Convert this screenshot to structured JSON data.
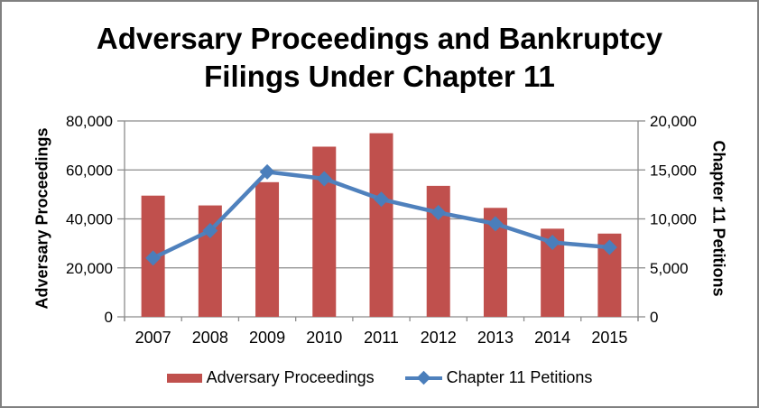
{
  "frame": {
    "border_color": "#808080",
    "background": "#FFFFFF"
  },
  "chart": {
    "title_line1": "Adversary Proceedings and Bankruptcy",
    "title_line2": "Filings Under Chapter 11"
  },
  "chart_data": {
    "type": "combo",
    "categories": [
      "2007",
      "2008",
      "2009",
      "2010",
      "2011",
      "2012",
      "2013",
      "2014",
      "2015"
    ],
    "series": [
      {
        "name": "Adversary Proceedings",
        "type": "bar",
        "axis": "left",
        "color": "#C0504D",
        "values": [
          49500,
          45500,
          55000,
          69500,
          75000,
          53500,
          44500,
          36000,
          34000
        ]
      },
      {
        "name": "Chapter 11 Petitions",
        "type": "line",
        "axis": "right",
        "color": "#4F81BD",
        "marker": "diamond",
        "marker_color": "#4A7EBB",
        "values": [
          6000,
          8800,
          14800,
          14100,
          12000,
          10650,
          9500,
          7600,
          7100
        ]
      }
    ],
    "left_axis": {
      "title": "Adversary Proceedings",
      "min": 0,
      "max": 80000,
      "tick_interval": 20000,
      "tick_labels": [
        "0",
        "20,000",
        "40,000",
        "60,000",
        "80,000"
      ]
    },
    "right_axis": {
      "title": "Chapter 11 Petitions",
      "min": 0,
      "max": 20000,
      "tick_interval": 5000,
      "tick_labels": [
        "0",
        "5,000",
        "10,000",
        "15,000",
        "20,000"
      ]
    },
    "grid": "horizontal",
    "gridline_color": "#8C8C8C",
    "legend_position": "bottom"
  }
}
